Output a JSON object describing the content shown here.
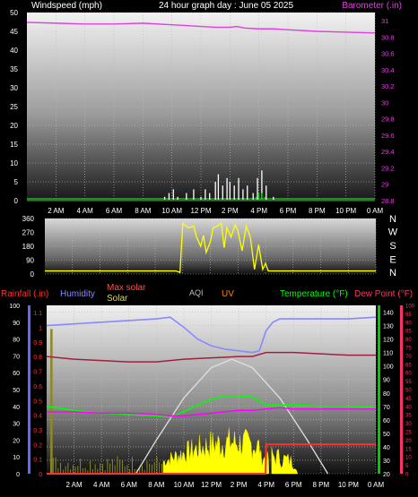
{
  "header": {
    "left": "Windspeed (mph)",
    "center": "24 hour graph day : June 05 2025",
    "right": "Barometer (.in)"
  },
  "colors": {
    "barometer": "#e040e0",
    "wind": "#ffffff",
    "gust": "#00cc00",
    "winddir": "#ffff00",
    "rain": "#ff3030",
    "humidity": "#8888ff",
    "maxsolar": "#ff5050",
    "solar": "#ffff00",
    "aqi": "#c0c0c0",
    "uv": "#ff8800",
    "temperature": "#00ff00",
    "dewpoint": "#ff00ff",
    "rainAxis": "#6666ff",
    "tempAxis": "#00cc00",
    "dewAxis": "#ff3366"
  },
  "time_labels": [
    "2 AM",
    "4 AM",
    "6 AM",
    "8 AM",
    "10 AM",
    "12 PM",
    "2 PM",
    "4 PM",
    "6 PM",
    "8 PM",
    "10 PM",
    "0 AM"
  ],
  "chart_data": [
    {
      "type": "line",
      "name": "wind-barometer",
      "x_hours": [
        0,
        24
      ],
      "wind_axis": {
        "ticks": [
          "0",
          "5",
          "10",
          "15",
          "20",
          "25",
          "30",
          "35",
          "40",
          "45",
          "50"
        ],
        "ylim": [
          0,
          50
        ]
      },
      "baro_axis": {
        "ticks": [
          "28.8",
          "29",
          "29.2",
          "29.4",
          "29.6",
          "29.8",
          "30",
          "30.2",
          "30.4",
          "30.6",
          "30.8",
          "31"
        ],
        "ylim": [
          28.8,
          31.1
        ]
      },
      "series": [
        {
          "name": "Barometer",
          "x": [
            0,
            2,
            4,
            6,
            8,
            10,
            11,
            12,
            13,
            14,
            14.5,
            15,
            16,
            17,
            18,
            20,
            22,
            24
          ],
          "y": [
            30.98,
            30.97,
            30.96,
            30.96,
            30.97,
            30.95,
            30.94,
            30.93,
            30.92,
            30.92,
            30.93,
            30.91,
            30.9,
            30.9,
            30.89,
            30.87,
            30.86,
            30.85
          ]
        },
        {
          "name": "Wind",
          "x": [
            9.5,
            9.8,
            10.1,
            10.4,
            11,
            11.5,
            12,
            12.3,
            12.6,
            13,
            13.2,
            13.5,
            13.8,
            14,
            14.3,
            14.6,
            14.9,
            15.2,
            15.6,
            15.9,
            16.2,
            16.5,
            17
          ],
          "y": [
            1,
            2,
            3,
            1,
            2,
            3,
            1,
            3,
            2,
            5,
            7,
            4,
            6,
            5,
            4,
            6,
            3,
            4,
            2,
            6,
            8,
            4,
            1
          ]
        },
        {
          "name": "Gust",
          "x": [
            15.8,
            16.0,
            16.2,
            16.4
          ],
          "y": [
            1,
            2,
            2,
            1
          ]
        }
      ]
    },
    {
      "type": "line",
      "name": "wind-direction",
      "axis": {
        "ticks": [
          "0",
          "90",
          "180",
          "270",
          "360"
        ],
        "ylim": [
          0,
          360
        ]
      },
      "dir_labels": [
        "N",
        "W",
        "S",
        "E",
        "N"
      ],
      "series": [
        {
          "name": "Wind Direction",
          "x": [
            0,
            8,
            9.5,
            9.8,
            10,
            10.1,
            10.4,
            10.8,
            11,
            11.3,
            11.5,
            11.7,
            12,
            12.2,
            12.5,
            12.8,
            13,
            13.2,
            13.5,
            13.8,
            14,
            14.3,
            14.6,
            14.9,
            15.2,
            15.5,
            15.8,
            16,
            16.2,
            16.4,
            16.6,
            17,
            20,
            24
          ],
          "y": [
            20,
            20,
            20,
            10,
            330,
            320,
            300,
            310,
            240,
            180,
            250,
            140,
            210,
            300,
            310,
            330,
            170,
            300,
            240,
            320,
            280,
            150,
            310,
            240,
            30,
            190,
            30,
            70,
            20,
            20,
            20,
            20,
            20,
            20
          ]
        }
      ]
    },
    {
      "type": "line",
      "name": "multi-weather",
      "legend": {
        "rainfall": "Rainfall (.in)",
        "humidity": "Humidity",
        "maxsolar": "Max solar",
        "solar": "Solar",
        "aqi": "AQI",
        "uv": "UV",
        "temperature": "Temperature (°F)",
        "dewpoint": "Dew Point (°F)"
      },
      "rain_axis": {
        "ticks": [
          "0",
          "0.1",
          "0.2",
          "0.3",
          "0.4",
          "0.5",
          "0.6",
          "0.7",
          "0.8",
          "0.9",
          "1",
          "1.1"
        ],
        "ylim": [
          0,
          1.15
        ]
      },
      "blue_axis": {
        "ticks": [
          "0",
          "10",
          "20",
          "30",
          "40",
          "50",
          "60",
          "70",
          "80",
          "90",
          "100"
        ],
        "ylim": [
          0,
          100
        ]
      },
      "temp_axis": {
        "ticks": [
          "20",
          "30",
          "40",
          "50",
          "60",
          "70",
          "80",
          "90",
          "100",
          "110",
          "120",
          "130",
          "140"
        ],
        "ylim": [
          20,
          145
        ]
      },
      "dew_axis": {
        "ticks": [
          "0",
          "5",
          "10",
          "15",
          "20",
          "25",
          "30",
          "35",
          "40",
          "45",
          "50",
          "55",
          "60",
          "65",
          "70",
          "75",
          "80",
          "85",
          "90",
          "95",
          "100"
        ],
        "ylim": [
          0,
          100
        ]
      },
      "series": [
        {
          "name": "Humidity",
          "x": [
            0,
            2,
            4,
            6,
            8,
            9,
            10,
            11,
            12,
            13,
            14,
            15,
            15.5,
            16,
            16.5,
            17,
            18,
            20,
            22,
            24
          ],
          "y": [
            88,
            89,
            90,
            91,
            92,
            93,
            87,
            80,
            76,
            74,
            73,
            72,
            73,
            85,
            90,
            92,
            92,
            92,
            92,
            93
          ]
        },
        {
          "name": "Max solar",
          "x": [
            6.5,
            8,
            10,
            12,
            13.5,
            15,
            17,
            19,
            20.5
          ],
          "y": [
            0,
            20,
            45,
            63,
            68,
            63,
            45,
            20,
            0
          ]
        },
        {
          "name": "Temperature",
          "x": [
            0,
            2,
            4,
            6,
            8,
            9,
            10,
            11,
            12,
            13,
            14,
            15,
            15.5,
            16,
            17,
            18,
            20,
            22,
            24
          ],
          "y": [
            70,
            67,
            65,
            64,
            63,
            62,
            66,
            71,
            75,
            78,
            78,
            77,
            74,
            71,
            71,
            71,
            70,
            70,
            69
          ]
        },
        {
          "name": "Dew Point",
          "x": [
            0,
            2,
            4,
            6,
            8,
            9,
            10,
            11,
            12,
            13,
            14,
            15,
            16,
            17,
            18,
            20,
            22,
            24
          ],
          "y": [
            66,
            66,
            65,
            65,
            64,
            63,
            63,
            64,
            65,
            66,
            67,
            67,
            68,
            69,
            68,
            68,
            68,
            68
          ]
        },
        {
          "name": "Feels-like",
          "x": [
            0,
            2,
            4,
            6,
            8,
            9,
            10,
            12,
            14,
            15,
            16,
            18,
            20,
            22,
            24
          ],
          "y": [
            107,
            105,
            104,
            103,
            103,
            104,
            105,
            106,
            107,
            107,
            110,
            110,
            109,
            108,
            108
          ]
        },
        {
          "name": "Rainfall",
          "x": [
            0,
            15.9,
            16,
            24
          ],
          "y": [
            0,
            0,
            0.2,
            0.2
          ]
        }
      ]
    }
  ]
}
